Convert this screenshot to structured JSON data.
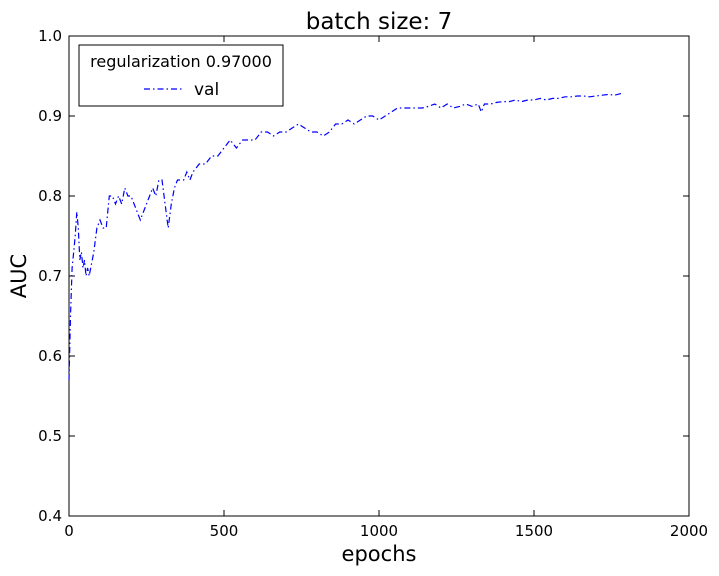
{
  "chart_data": {
    "type": "line",
    "title": "batch size: 7",
    "xlabel": "epochs",
    "ylabel": "AUC",
    "xlim": [
      0,
      2000
    ],
    "ylim": [
      0.4,
      1.0
    ],
    "xticks": [
      0,
      500,
      1000,
      1500,
      2000
    ],
    "yticks": [
      0.4,
      0.5,
      0.6,
      0.7,
      0.8,
      0.9,
      1.0
    ],
    "xtick_labels": [
      "0",
      "500",
      "1000",
      "1500",
      "2000"
    ],
    "ytick_labels": [
      "0.4",
      "0.5",
      "0.6",
      "0.7",
      "0.8",
      "0.9",
      "1.0"
    ],
    "grid": false,
    "legend": {
      "placement": "top-left",
      "title": "regularization 0.97000",
      "entries": [
        "val"
      ]
    },
    "series": [
      {
        "name": "val",
        "color": "#0000ff",
        "linestyle": "dashdot",
        "x": [
          0,
          5,
          10,
          15,
          20,
          25,
          30,
          35,
          40,
          45,
          50,
          55,
          60,
          65,
          70,
          75,
          80,
          90,
          100,
          110,
          120,
          130,
          140,
          150,
          160,
          170,
          180,
          190,
          200,
          210,
          220,
          230,
          240,
          250,
          260,
          270,
          280,
          290,
          300,
          310,
          320,
          330,
          340,
          350,
          360,
          370,
          380,
          390,
          400,
          420,
          440,
          460,
          480,
          500,
          520,
          540,
          560,
          580,
          600,
          620,
          640,
          660,
          680,
          700,
          720,
          740,
          760,
          780,
          800,
          820,
          840,
          860,
          880,
          900,
          920,
          940,
          960,
          980,
          1000,
          1020,
          1040,
          1060,
          1080,
          1100,
          1120,
          1140,
          1160,
          1180,
          1200,
          1220,
          1240,
          1260,
          1280,
          1300,
          1320,
          1330,
          1340,
          1360,
          1380,
          1400,
          1420,
          1440,
          1460,
          1480,
          1500,
          1520,
          1540,
          1560,
          1580,
          1600,
          1620,
          1640,
          1660,
          1680,
          1700,
          1720,
          1740,
          1760,
          1780,
          1790
        ],
        "y": [
          0.57,
          0.65,
          0.71,
          0.73,
          0.75,
          0.78,
          0.76,
          0.72,
          0.73,
          0.71,
          0.72,
          0.7,
          0.71,
          0.7,
          0.71,
          0.72,
          0.73,
          0.76,
          0.77,
          0.76,
          0.76,
          0.8,
          0.8,
          0.79,
          0.8,
          0.79,
          0.81,
          0.8,
          0.8,
          0.79,
          0.78,
          0.77,
          0.78,
          0.79,
          0.8,
          0.81,
          0.8,
          0.82,
          0.82,
          0.79,
          0.76,
          0.79,
          0.81,
          0.82,
          0.82,
          0.82,
          0.83,
          0.82,
          0.83,
          0.84,
          0.84,
          0.85,
          0.85,
          0.86,
          0.87,
          0.86,
          0.87,
          0.87,
          0.87,
          0.88,
          0.88,
          0.875,
          0.88,
          0.88,
          0.885,
          0.89,
          0.885,
          0.88,
          0.88,
          0.875,
          0.88,
          0.89,
          0.89,
          0.895,
          0.89,
          0.895,
          0.9,
          0.9,
          0.895,
          0.9,
          0.905,
          0.91,
          0.91,
          0.91,
          0.91,
          0.91,
          0.912,
          0.915,
          0.91,
          0.915,
          0.91,
          0.912,
          0.915,
          0.912,
          0.915,
          0.905,
          0.915,
          0.915,
          0.917,
          0.918,
          0.918,
          0.92,
          0.918,
          0.92,
          0.92,
          0.922,
          0.92,
          0.922,
          0.922,
          0.924,
          0.924,
          0.925,
          0.925,
          0.924,
          0.925,
          0.926,
          0.927,
          0.926,
          0.928,
          0.928
        ]
      }
    ]
  }
}
